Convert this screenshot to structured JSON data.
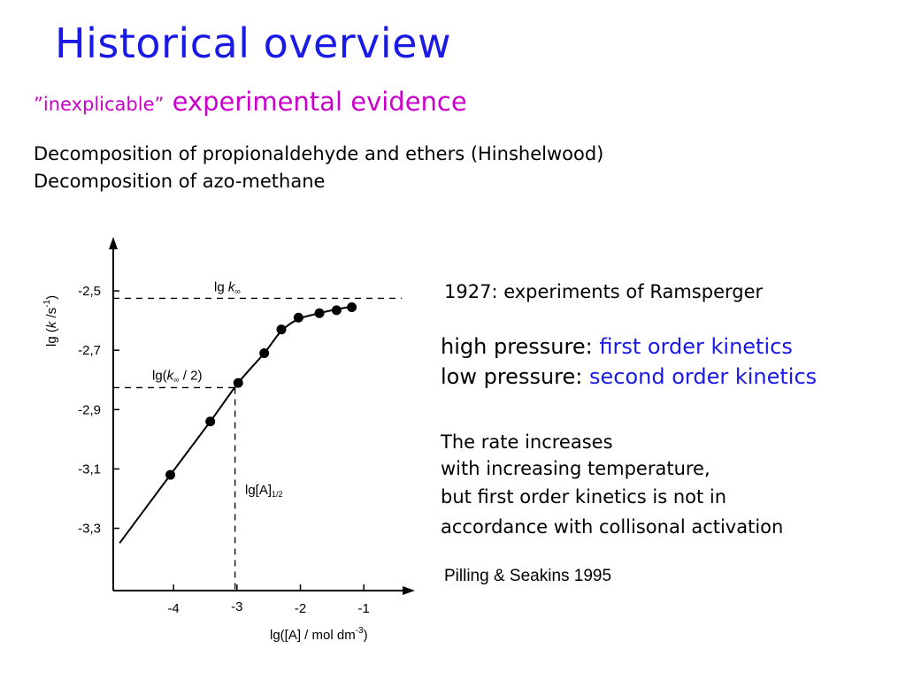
{
  "slide": {
    "title": "Historical overview",
    "subtitle_quoted": "”inexplicable”",
    "subtitle_rest": " experimental evidence",
    "decomposition_1": "Decomposition of propionaldehyde and ethers (Hinshelwood)",
    "decomposition_2": "Decomposition  of azo-methane",
    "ramsperger": "1927: experiments of Ramsperger",
    "high_pressure_label": "high pressure: ",
    "high_pressure_value": "first order kinetics",
    "low_pressure_label": "low pressure: ",
    "low_pressure_value": "second order kinetics",
    "rate_line_1": "The rate increases",
    "rate_line_2": "with increasing temperature,",
    "rate_line_3": "but first order kinetics is not in",
    "rate_line_4": "accordance with collisonal activation",
    "citation": "Pilling & Seakins 1995",
    "colors": {
      "title": "#1a1ae6",
      "subtitle": "#cc00cc",
      "highlight": "#1a1ae6"
    }
  },
  "chart_data": {
    "type": "line",
    "xlabel_main": "lg([A] / mol dm",
    "xlabel_sup": "-3",
    "xlabel_end": ")",
    "ylabel_main": "lg (",
    "ylabel_k": "k",
    "ylabel_unit": " /s",
    "ylabel_sup": "-1",
    "ylabel_end": ")",
    "x_ticks": [
      {
        "value": -4,
        "label": "-4"
      },
      {
        "value": -3,
        "label": "-3"
      },
      {
        "value": -2,
        "label": "-2"
      },
      {
        "value": -1,
        "label": "-1"
      }
    ],
    "y_ticks": [
      {
        "value": -2.5,
        "label": "-2,5"
      },
      {
        "value": -2.7,
        "label": "-2,7"
      },
      {
        "value": -2.9,
        "label": "-2,9"
      },
      {
        "value": -3.1,
        "label": "-3,1"
      },
      {
        "value": -3.3,
        "label": "-3,3"
      }
    ],
    "xlim": [
      -4.95,
      -0.25
    ],
    "ylim": [
      -3.51,
      -2.33
    ],
    "points": [
      {
        "x": -4.05,
        "y": -3.12
      },
      {
        "x": -3.42,
        "y": -2.94
      },
      {
        "x": -2.98,
        "y": -2.81
      },
      {
        "x": -2.57,
        "y": -2.71
      },
      {
        "x": -2.3,
        "y": -2.63
      },
      {
        "x": -2.03,
        "y": -2.59
      },
      {
        "x": -1.7,
        "y": -2.575
      },
      {
        "x": -1.43,
        "y": -2.565
      },
      {
        "x": -1.19,
        "y": -2.555
      }
    ],
    "curve": [
      {
        "x": -4.85,
        "y": -3.35
      },
      {
        "x": -4.05,
        "y": -3.12
      },
      {
        "x": -3.42,
        "y": -2.94
      },
      {
        "x": -2.98,
        "y": -2.81
      },
      {
        "x": -2.57,
        "y": -2.71
      },
      {
        "x": -2.3,
        "y": -2.635
      },
      {
        "x": -2.03,
        "y": -2.595
      },
      {
        "x": -1.7,
        "y": -2.575
      },
      {
        "x": -1.43,
        "y": -2.562
      },
      {
        "x": -1.19,
        "y": -2.553
      }
    ],
    "annotations": {
      "lgk_inf_text": "lg ",
      "lgk_inf_k": "k",
      "lgk_inf_sub": "∞",
      "lgk_inf_y": -2.525,
      "half_text_open": "lg(",
      "half_k": "k",
      "half_sub": "∞",
      "half_text_close": " / 2)",
      "half_y": -2.826,
      "half_x": -3.03,
      "a_half_text": "lg[A]",
      "a_half_sub": "1/2"
    }
  }
}
